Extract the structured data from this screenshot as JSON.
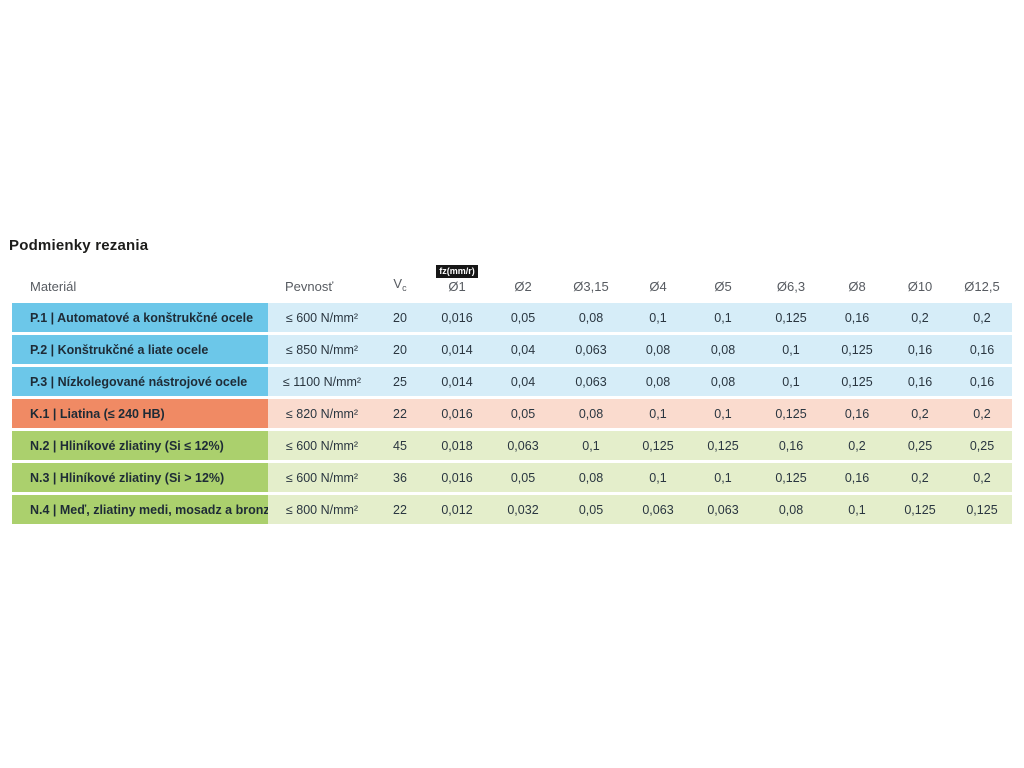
{
  "title": "Podmienky rezania",
  "colors": {
    "title_fg": "#1d1d1b",
    "header_fg": "#575b61",
    "material_fg": "#1e2b36",
    "value_fg": "#2a3640",
    "badge_bg": "#161616",
    "badge_fg": "#ffffff",
    "p_strong": "#6cc7e9",
    "p_light": "#d6edf8",
    "k_strong": "#f08a64",
    "k_light": "#fadbce",
    "n_strong": "#abd06d",
    "n_light": "#e4eecb"
  },
  "chart_data": {
    "type": "table",
    "title": "Podmienky rezania",
    "header": {
      "material": "Materiál",
      "strength": "Pevnosť",
      "vc_main": "V",
      "vc_sub": "c",
      "fz_badge": "fz(mm/r)",
      "diameters": [
        "Ø1",
        "Ø2",
        "Ø3,15",
        "Ø4",
        "Ø5",
        "Ø6,3",
        "Ø8",
        "Ø10",
        "Ø12,5"
      ]
    },
    "rows": [
      {
        "group": "P",
        "material": "P.1 | Automatové a konštrukčné ocele",
        "strength": "≤ 600 N/mm²",
        "vc": "20",
        "fz": [
          "0,016",
          "0,05",
          "0,08",
          "0,1",
          "0,1",
          "0,125",
          "0,16",
          "0,2",
          "0,2"
        ]
      },
      {
        "group": "P",
        "material": "P.2 | Konštrukčné a liate ocele",
        "strength": "≤ 850 N/mm²",
        "vc": "20",
        "fz": [
          "0,014",
          "0,04",
          "0,063",
          "0,08",
          "0,08",
          "0,1",
          "0,125",
          "0,16",
          "0,16"
        ]
      },
      {
        "group": "P",
        "material": "P.3 | Nízkolegované nástrojové ocele",
        "strength": "≤ 1100 N/mm²",
        "vc": "25",
        "fz": [
          "0,014",
          "0,04",
          "0,063",
          "0,08",
          "0,08",
          "0,1",
          "0,125",
          "0,16",
          "0,16"
        ]
      },
      {
        "group": "K",
        "material": "K.1 | Liatina (≤ 240 HB)",
        "strength": "≤ 820 N/mm²",
        "vc": "22",
        "fz": [
          "0,016",
          "0,05",
          "0,08",
          "0,1",
          "0,1",
          "0,125",
          "0,16",
          "0,2",
          "0,2"
        ]
      },
      {
        "group": "N",
        "material": "N.2 | Hliníkové zliatiny (Si ≤ 12%)",
        "strength": "≤ 600 N/mm²",
        "vc": "45",
        "fz": [
          "0,018",
          "0,063",
          "0,1",
          "0,125",
          "0,125",
          "0,16",
          "0,2",
          "0,25",
          "0,25"
        ]
      },
      {
        "group": "N",
        "material": "N.3 | Hliníkové zliatiny (Si > 12%)",
        "strength": "≤ 600 N/mm²",
        "vc": "36",
        "fz": [
          "0,016",
          "0,05",
          "0,08",
          "0,1",
          "0,1",
          "0,125",
          "0,16",
          "0,2",
          "0,2"
        ]
      },
      {
        "group": "N",
        "material": "N.4 | Meď, zliatiny medi, mosadz a bronz",
        "strength": "≤ 800 N/mm²",
        "vc": "22",
        "fz": [
          "0,012",
          "0,032",
          "0,05",
          "0,063",
          "0,063",
          "0,08",
          "0,1",
          "0,125",
          "0,125"
        ]
      }
    ]
  }
}
